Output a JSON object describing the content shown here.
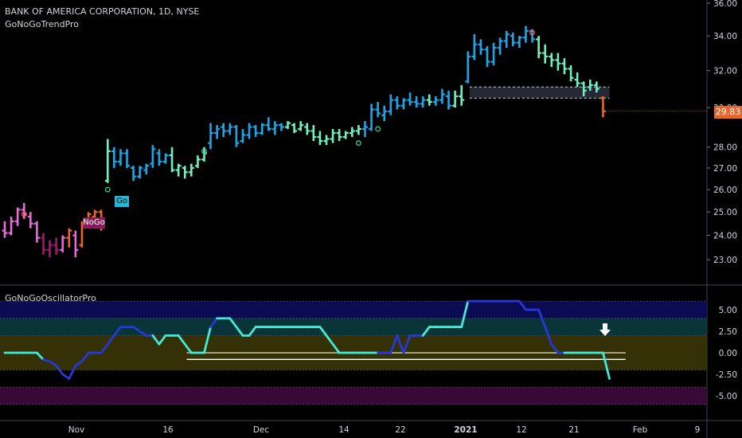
{
  "header": {
    "symbol_line": "BANK OF AMERICA CORPORATION, 1D, NYSE",
    "indicator": "GoNoGoTrendPro"
  },
  "oscillator_title": "GoNoGoOscillatorPro",
  "last_price_label": "29.83",
  "colors": {
    "background": "#000000",
    "go_strong": "#1fa4e8",
    "go": "#6ff0c0",
    "nogo": "#e86bd9",
    "nogo_strong": "#9c1a6e",
    "nogo_neutral": "#e8662a",
    "osc_strong": "#2838d8",
    "osc": "#44e8d8",
    "badge_go": "#1fb8d6",
    "badge_nogo": "#8a1a5a"
  },
  "badges": {
    "go": "Go",
    "nogo": "NoGo"
  },
  "chart_data": [
    {
      "type": "ohlc",
      "title": "BANK OF AMERICA CORPORATION, 1D, NYSE",
      "x_ticks": [
        "Nov",
        "16",
        "Dec",
        "14",
        "22",
        "2021",
        "12",
        "21",
        "Feb",
        "9"
      ],
      "y_ticks": [
        "23.00",
        "24.00",
        "25.00",
        "26.00",
        "27.00",
        "28.00",
        "30.00",
        "32.00",
        "34.00",
        "36.00"
      ],
      "yscale": "log",
      "ylim": [
        22.5,
        36
      ],
      "last_price": 29.83,
      "bars": [
        {
          "i": 0,
          "o": 24.2,
          "h": 24.6,
          "l": 23.9,
          "c": 24.1,
          "k": "nogo"
        },
        {
          "i": 1,
          "o": 24.1,
          "h": 24.8,
          "l": 24.0,
          "c": 24.6,
          "k": "nogo"
        },
        {
          "i": 2,
          "o": 24.6,
          "h": 25.2,
          "l": 24.4,
          "c": 25.1,
          "k": "nogo"
        },
        {
          "i": 3,
          "o": 25.1,
          "h": 25.4,
          "l": 24.7,
          "c": 24.9,
          "k": "nogo"
        },
        {
          "i": 4,
          "o": 24.8,
          "h": 25.0,
          "l": 24.3,
          "c": 24.5,
          "k": "nogo"
        },
        {
          "i": 5,
          "o": 24.5,
          "h": 24.6,
          "l": 23.7,
          "c": 23.9,
          "k": "nogo"
        },
        {
          "i": 6,
          "o": 23.9,
          "h": 24.1,
          "l": 23.2,
          "c": 23.4,
          "k": "nogo_strong"
        },
        {
          "i": 7,
          "o": 23.4,
          "h": 23.8,
          "l": 23.1,
          "c": 23.6,
          "k": "nogo_strong"
        },
        {
          "i": 8,
          "o": 23.6,
          "h": 23.9,
          "l": 23.2,
          "c": 23.4,
          "k": "nogo_strong"
        },
        {
          "i": 9,
          "o": 23.4,
          "h": 24.0,
          "l": 23.3,
          "c": 23.9,
          "k": "nogo"
        },
        {
          "i": 10,
          "o": 23.9,
          "h": 24.3,
          "l": 23.5,
          "c": 24.2,
          "k": "nogo_neutral"
        },
        {
          "i": 11,
          "o": 24.0,
          "h": 24.2,
          "l": 23.1,
          "c": 23.4,
          "k": "nogo"
        },
        {
          "i": 12,
          "o": 23.6,
          "h": 24.6,
          "l": 23.5,
          "c": 24.4,
          "k": "nogo_neutral"
        },
        {
          "i": 13,
          "o": 24.5,
          "h": 25.0,
          "l": 24.4,
          "c": 24.9,
          "k": "nogo_neutral"
        },
        {
          "i": 14,
          "o": 24.8,
          "h": 25.1,
          "l": 24.6,
          "c": 25.0,
          "k": "nogo_neutral"
        },
        {
          "i": 15,
          "o": 25.0,
          "h": 25.1,
          "l": 24.2,
          "c": 24.4,
          "k": "nogo_neutral"
        },
        {
          "i": 16,
          "o": 26.4,
          "h": 28.4,
          "l": 26.3,
          "c": 27.8,
          "k": "go"
        },
        {
          "i": 17,
          "o": 27.8,
          "h": 28.0,
          "l": 27.0,
          "c": 27.3,
          "k": "go_strong"
        },
        {
          "i": 18,
          "o": 27.3,
          "h": 27.9,
          "l": 27.1,
          "c": 27.7,
          "k": "go_strong"
        },
        {
          "i": 19,
          "o": 27.7,
          "h": 27.9,
          "l": 27.0,
          "c": 27.1,
          "k": "go_strong"
        },
        {
          "i": 20,
          "o": 27.0,
          "h": 27.1,
          "l": 26.4,
          "c": 26.6,
          "k": "go_strong"
        },
        {
          "i": 21,
          "o": 26.6,
          "h": 27.1,
          "l": 26.5,
          "c": 27.0,
          "k": "go_strong"
        },
        {
          "i": 22,
          "o": 26.9,
          "h": 27.2,
          "l": 26.7,
          "c": 27.1,
          "k": "go_strong"
        },
        {
          "i": 23,
          "o": 27.2,
          "h": 28.1,
          "l": 27.0,
          "c": 27.9,
          "k": "go_strong"
        },
        {
          "i": 24,
          "o": 27.7,
          "h": 27.9,
          "l": 27.1,
          "c": 27.3,
          "k": "go_strong"
        },
        {
          "i": 25,
          "o": 27.3,
          "h": 27.7,
          "l": 27.2,
          "c": 27.6,
          "k": "go_strong"
        },
        {
          "i": 26,
          "o": 27.6,
          "h": 28.0,
          "l": 26.8,
          "c": 26.9,
          "k": "go"
        },
        {
          "i": 27,
          "o": 26.9,
          "h": 27.2,
          "l": 26.6,
          "c": 27.1,
          "k": "go"
        },
        {
          "i": 28,
          "o": 27.0,
          "h": 27.1,
          "l": 26.5,
          "c": 26.8,
          "k": "go"
        },
        {
          "i": 29,
          "o": 26.8,
          "h": 27.2,
          "l": 26.6,
          "c": 27.0,
          "k": "go"
        },
        {
          "i": 30,
          "o": 27.1,
          "h": 27.6,
          "l": 27.0,
          "c": 27.4,
          "k": "go"
        },
        {
          "i": 31,
          "o": 27.4,
          "h": 28.0,
          "l": 27.3,
          "c": 27.7,
          "k": "go"
        },
        {
          "i": 32,
          "o": 28.2,
          "h": 29.2,
          "l": 27.9,
          "c": 28.7,
          "k": "go_strong"
        },
        {
          "i": 33,
          "o": 28.7,
          "h": 29.1,
          "l": 28.4,
          "c": 28.9,
          "k": "go_strong"
        },
        {
          "i": 34,
          "o": 29.0,
          "h": 29.2,
          "l": 28.5,
          "c": 28.8,
          "k": "go_strong"
        },
        {
          "i": 35,
          "o": 28.8,
          "h": 29.2,
          "l": 28.6,
          "c": 29.0,
          "k": "go_strong"
        },
        {
          "i": 36,
          "o": 29.0,
          "h": 29.1,
          "l": 28.0,
          "c": 28.2,
          "k": "go_strong"
        },
        {
          "i": 37,
          "o": 28.3,
          "h": 28.9,
          "l": 28.2,
          "c": 28.6,
          "k": "go_strong"
        },
        {
          "i": 38,
          "o": 28.6,
          "h": 29.2,
          "l": 28.4,
          "c": 29.0,
          "k": "go_strong"
        },
        {
          "i": 39,
          "o": 29.0,
          "h": 29.1,
          "l": 28.5,
          "c": 28.7,
          "k": "go_strong"
        },
        {
          "i": 40,
          "o": 28.7,
          "h": 29.2,
          "l": 28.6,
          "c": 29.1,
          "k": "go_strong"
        },
        {
          "i": 41,
          "o": 29.1,
          "h": 29.5,
          "l": 28.8,
          "c": 28.9,
          "k": "go_strong"
        },
        {
          "i": 42,
          "o": 28.9,
          "h": 29.3,
          "l": 28.6,
          "c": 29.1,
          "k": "go_strong"
        },
        {
          "i": 43,
          "o": 29.1,
          "h": 29.2,
          "l": 28.8,
          "c": 29.0,
          "k": "go_strong"
        },
        {
          "i": 44,
          "o": 29.0,
          "h": 29.3,
          "l": 28.9,
          "c": 29.2,
          "k": "go"
        },
        {
          "i": 45,
          "o": 29.1,
          "h": 29.2,
          "l": 28.7,
          "c": 28.8,
          "k": "go"
        },
        {
          "i": 46,
          "o": 28.9,
          "h": 29.3,
          "l": 28.8,
          "c": 29.1,
          "k": "go"
        },
        {
          "i": 47,
          "o": 29.0,
          "h": 29.2,
          "l": 28.6,
          "c": 28.8,
          "k": "go"
        },
        {
          "i": 48,
          "o": 28.8,
          "h": 29.1,
          "l": 28.3,
          "c": 28.5,
          "k": "go"
        },
        {
          "i": 49,
          "o": 28.5,
          "h": 28.8,
          "l": 28.1,
          "c": 28.3,
          "k": "go"
        },
        {
          "i": 50,
          "o": 28.3,
          "h": 28.6,
          "l": 28.1,
          "c": 28.4,
          "k": "go"
        },
        {
          "i": 51,
          "o": 28.4,
          "h": 28.9,
          "l": 28.2,
          "c": 28.7,
          "k": "go"
        },
        {
          "i": 52,
          "o": 28.7,
          "h": 28.9,
          "l": 28.3,
          "c": 28.5,
          "k": "go"
        },
        {
          "i": 53,
          "o": 28.5,
          "h": 28.8,
          "l": 28.4,
          "c": 28.7,
          "k": "go"
        },
        {
          "i": 54,
          "o": 28.7,
          "h": 29.0,
          "l": 28.5,
          "c": 28.8,
          "k": "go"
        },
        {
          "i": 55,
          "o": 28.8,
          "h": 29.1,
          "l": 28.6,
          "c": 28.9,
          "k": "go"
        },
        {
          "i": 56,
          "o": 28.9,
          "h": 29.3,
          "l": 28.5,
          "c": 29.0,
          "k": "go_strong"
        },
        {
          "i": 57,
          "o": 28.9,
          "h": 30.2,
          "l": 28.8,
          "c": 29.9,
          "k": "go_strong"
        },
        {
          "i": 58,
          "o": 29.9,
          "h": 30.3,
          "l": 29.5,
          "c": 29.7,
          "k": "go_strong"
        },
        {
          "i": 59,
          "o": 29.6,
          "h": 30.1,
          "l": 29.3,
          "c": 29.8,
          "k": "go_strong"
        },
        {
          "i": 60,
          "o": 29.8,
          "h": 30.7,
          "l": 29.6,
          "c": 30.4,
          "k": "go_strong"
        },
        {
          "i": 61,
          "o": 30.4,
          "h": 30.6,
          "l": 29.9,
          "c": 30.1,
          "k": "go_strong"
        },
        {
          "i": 62,
          "o": 30.1,
          "h": 30.5,
          "l": 29.9,
          "c": 30.4,
          "k": "go_strong"
        },
        {
          "i": 63,
          "o": 30.4,
          "h": 30.8,
          "l": 30.1,
          "c": 30.3,
          "k": "go_strong"
        },
        {
          "i": 64,
          "o": 30.3,
          "h": 30.6,
          "l": 30.0,
          "c": 30.2,
          "k": "go_strong"
        },
        {
          "i": 65,
          "o": 30.2,
          "h": 30.6,
          "l": 30.0,
          "c": 30.4,
          "k": "go_strong"
        },
        {
          "i": 66,
          "o": 30.4,
          "h": 30.7,
          "l": 30.1,
          "c": 30.3,
          "k": "go"
        },
        {
          "i": 67,
          "o": 30.3,
          "h": 30.6,
          "l": 30.1,
          "c": 30.4,
          "k": "go_strong"
        },
        {
          "i": 68,
          "o": 30.4,
          "h": 31.0,
          "l": 30.2,
          "c": 30.7,
          "k": "go_strong"
        },
        {
          "i": 69,
          "o": 30.6,
          "h": 30.9,
          "l": 29.9,
          "c": 30.1,
          "k": "go_strong"
        },
        {
          "i": 70,
          "o": 30.1,
          "h": 30.9,
          "l": 30.0,
          "c": 30.6,
          "k": "go"
        },
        {
          "i": 71,
          "o": 30.6,
          "h": 31.2,
          "l": 30.1,
          "c": 30.4,
          "k": "go"
        },
        {
          "i": 72,
          "o": 31.4,
          "h": 33.1,
          "l": 31.3,
          "c": 32.8,
          "k": "go_strong"
        },
        {
          "i": 73,
          "o": 32.8,
          "h": 34.1,
          "l": 32.6,
          "c": 33.5,
          "k": "go_strong"
        },
        {
          "i": 74,
          "o": 33.5,
          "h": 33.8,
          "l": 32.9,
          "c": 33.2,
          "k": "go_strong"
        },
        {
          "i": 75,
          "o": 33.2,
          "h": 33.4,
          "l": 32.2,
          "c": 32.5,
          "k": "go_strong"
        },
        {
          "i": 76,
          "o": 32.5,
          "h": 33.6,
          "l": 32.3,
          "c": 33.3,
          "k": "go_strong"
        },
        {
          "i": 77,
          "o": 33.3,
          "h": 33.9,
          "l": 32.9,
          "c": 33.7,
          "k": "go_strong"
        },
        {
          "i": 78,
          "o": 33.7,
          "h": 34.3,
          "l": 33.3,
          "c": 34.1,
          "k": "go_strong"
        },
        {
          "i": 79,
          "o": 34.0,
          "h": 34.2,
          "l": 33.4,
          "c": 33.6,
          "k": "go_strong"
        },
        {
          "i": 80,
          "o": 33.6,
          "h": 34.0,
          "l": 33.3,
          "c": 33.9,
          "k": "go_strong"
        },
        {
          "i": 81,
          "o": 33.9,
          "h": 34.6,
          "l": 33.6,
          "c": 34.3,
          "k": "go_strong"
        },
        {
          "i": 82,
          "o": 34.3,
          "h": 34.4,
          "l": 33.6,
          "c": 33.8,
          "k": "go_strong"
        },
        {
          "i": 83,
          "o": 33.8,
          "h": 34.0,
          "l": 32.7,
          "c": 33.0,
          "k": "go"
        },
        {
          "i": 84,
          "o": 33.0,
          "h": 33.5,
          "l": 32.4,
          "c": 32.8,
          "k": "go"
        },
        {
          "i": 85,
          "o": 32.8,
          "h": 33.0,
          "l": 32.2,
          "c": 32.6,
          "k": "go"
        },
        {
          "i": 86,
          "o": 32.6,
          "h": 33.0,
          "l": 32.0,
          "c": 32.4,
          "k": "go"
        },
        {
          "i": 87,
          "o": 32.4,
          "h": 32.7,
          "l": 31.8,
          "c": 32.1,
          "k": "go"
        },
        {
          "i": 88,
          "o": 32.1,
          "h": 32.3,
          "l": 31.4,
          "c": 31.6,
          "k": "go"
        },
        {
          "i": 89,
          "o": 31.5,
          "h": 31.9,
          "l": 31.1,
          "c": 31.3,
          "k": "go"
        },
        {
          "i": 90,
          "o": 31.3,
          "h": 31.4,
          "l": 30.6,
          "c": 30.9,
          "k": "go"
        },
        {
          "i": 91,
          "o": 31.1,
          "h": 31.5,
          "l": 30.9,
          "c": 31.2,
          "k": "go"
        },
        {
          "i": 92,
          "o": 31.2,
          "h": 31.4,
          "l": 30.8,
          "c": 31.0,
          "k": "go"
        },
        {
          "i": 93,
          "o": 30.5,
          "h": 30.6,
          "l": 29.5,
          "c": 29.8,
          "k": "nogo_neutral"
        }
      ],
      "markers": [
        {
          "i": 3,
          "v": 24.9,
          "k": "nogo"
        },
        {
          "i": 16,
          "v": 26.0,
          "k": "go"
        },
        {
          "i": 31,
          "v": 27.8,
          "k": "go"
        },
        {
          "i": 55,
          "v": 28.2,
          "k": "go"
        },
        {
          "i": 58,
          "v": 28.9,
          "k": "go"
        },
        {
          "i": 82,
          "v": 34.2,
          "k": "nogo"
        }
      ],
      "resistance_band": [
        31.1,
        30.5
      ]
    },
    {
      "type": "line",
      "title": "GoNoGoOscillatorPro",
      "y_ticks": [
        "5.00",
        "2.50",
        "0.00",
        "-2.50",
        "-5.00"
      ],
      "ylim": [
        -6.2,
        6.2
      ],
      "zones": [
        6,
        4,
        2,
        -2,
        -4,
        -6
      ],
      "values": [
        0,
        0,
        0,
        0,
        0,
        0,
        -0.8,
        -1,
        -1.5,
        -2.5,
        -3,
        -1.5,
        -1,
        0,
        0,
        0,
        1,
        2,
        3,
        3,
        3,
        2.5,
        2,
        2,
        1,
        2,
        2,
        2,
        1,
        0,
        0,
        0,
        3,
        4,
        4,
        4,
        3,
        2,
        2,
        3,
        3,
        3,
        3,
        3,
        3,
        3,
        3,
        3,
        3,
        3,
        2,
        1,
        0,
        0,
        0,
        0,
        0,
        0,
        0,
        0,
        0,
        2,
        0,
        2,
        2,
        2,
        3,
        3,
        3,
        3,
        3,
        3,
        6,
        6,
        6,
        6,
        6,
        6,
        6,
        6,
        6,
        5,
        5,
        5,
        3,
        1,
        0,
        0,
        0,
        0,
        0,
        0,
        0,
        0,
        -3
      ],
      "strong": [
        0,
        0,
        0,
        0,
        0,
        0,
        1,
        1,
        1,
        1,
        1,
        1,
        1,
        1,
        1,
        1,
        1,
        1,
        1,
        1,
        1,
        1,
        1,
        0,
        0,
        0,
        0,
        0,
        0,
        0,
        0,
        0,
        1,
        0,
        0,
        0,
        0,
        0,
        0,
        0,
        0,
        0,
        0,
        0,
        0,
        0,
        0,
        0,
        0,
        0,
        0,
        0,
        0,
        0,
        0,
        0,
        0,
        0,
        1,
        1,
        1,
        1,
        1,
        1,
        1,
        0,
        0,
        0,
        0,
        0,
        0,
        0,
        1,
        1,
        1,
        1,
        1,
        1,
        1,
        1,
        1,
        1,
        1,
        1,
        1,
        1,
        1,
        0,
        0,
        0,
        0,
        0,
        0,
        0,
        0
      ],
      "baselines": [
        {
          "from": 32,
          "to": 98,
          "v": 0
        },
        {
          "from": 32,
          "to": 98,
          "v": -0.4
        }
      ]
    }
  ]
}
